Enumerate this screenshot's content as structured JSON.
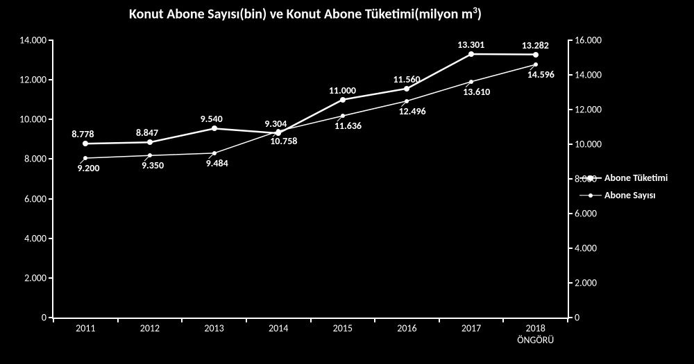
{
  "chart": {
    "type": "line-dual-axis",
    "title_pre": "Konut Abone Sayısı(bin) ve Konut Abone Tüketimi(milyon m",
    "title_sup": "3",
    "title_post": ")",
    "title_fontsize": 20,
    "title_fontweight": "bold",
    "background_color": "#000000",
    "axis_color": "#ffffff",
    "text_color": "#ffffff",
    "line_width": 2,
    "categories": [
      "2011",
      "2012",
      "2013",
      "2014",
      "2015",
      "2016",
      "2017",
      "2018\nÖNGÖRÜ"
    ],
    "left_axis": {
      "min": 0,
      "max": 14000,
      "step": 2000,
      "ticks": [
        "0",
        "2.000",
        "4.000",
        "6.000",
        "8.000",
        "10.000",
        "12.000",
        "14.000"
      ]
    },
    "right_axis": {
      "min": 0,
      "max": 16000,
      "step": 2000,
      "ticks": [
        "0",
        "2.000",
        "4.000",
        "6.000",
        "8.000",
        "10.000",
        "12.000",
        "14.000",
        "16.000"
      ]
    },
    "series": [
      {
        "id": "tuketimi",
        "legend": "Abone Tüketimi",
        "axis": "left",
        "color": "#ffffff",
        "line_width": 2.5,
        "marker_size": 8,
        "values": [
          8778,
          8847,
          9540,
          9304,
          11000,
          11560,
          13301,
          13282
        ],
        "labels": [
          "8.778",
          "8.847",
          "9.540",
          "9.304",
          "11.000",
          "11.560",
          "13.301",
          "13.282"
        ],
        "label_positions": [
          "above",
          "above",
          "above",
          "above",
          "above",
          "above",
          "above",
          "above"
        ]
      },
      {
        "id": "sayisi",
        "legend": "Abone Sayısı",
        "axis": "right",
        "color": "#ffffff",
        "line_width": 1.5,
        "marker_size": 6,
        "values": [
          9200,
          9350,
          9484,
          10758,
          11636,
          12496,
          13610,
          14596
        ],
        "labels": [
          "9.200",
          "9.350",
          "9.484",
          "10.758",
          "11.636",
          "12.496",
          "13.610",
          "14.596"
        ],
        "label_positions": [
          "below",
          "below",
          "below",
          "below",
          "below",
          "below",
          "below",
          "below"
        ]
      }
    ],
    "legend_position": "right-middle",
    "aspect": "1000x525",
    "tick_label_fontsize": 14,
    "data_label_fontsize": 14,
    "data_label_fontweight": "bold"
  }
}
